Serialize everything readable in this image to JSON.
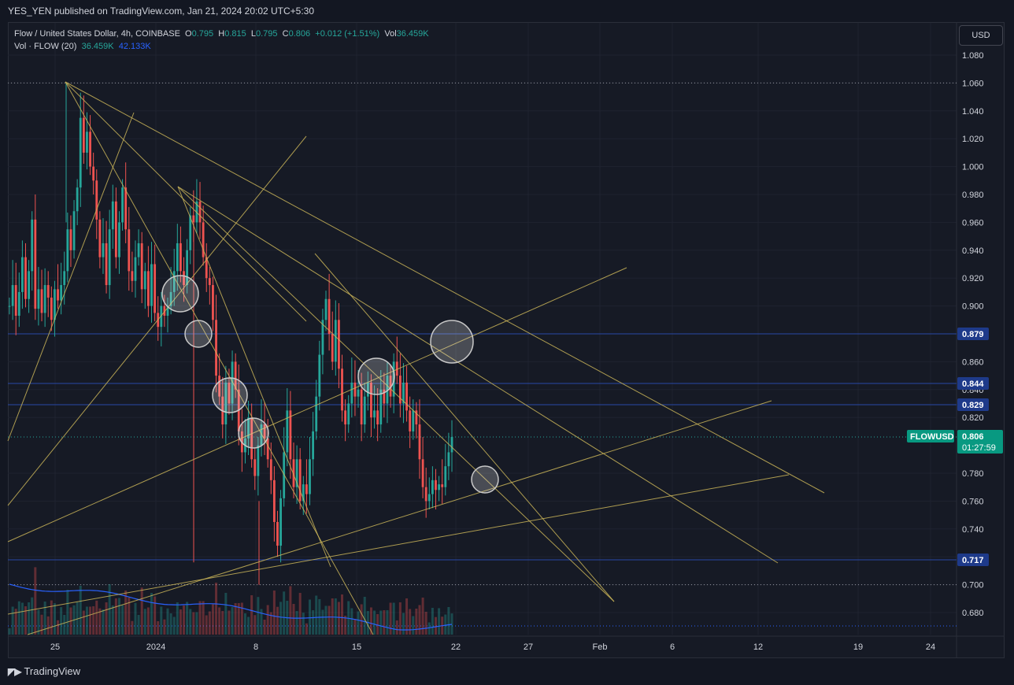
{
  "header": {
    "publisher_line": "YES_YEN published on TradingView.com, Jan 21, 2024 20:02 UTC+5:30"
  },
  "legend": {
    "symbol": "Flow / United States Dollar, 4h, COINBASE",
    "o_label": "O",
    "o_value": "0.795",
    "h_label": "H",
    "h_value": "0.815",
    "l_label": "L",
    "l_value": "0.795",
    "c_label": "C",
    "c_value": "0.806",
    "change": "+0.012 (+1.51%)",
    "vol_label": "Vol",
    "vol_value": "36.459K",
    "vol_indicator": "Vol · FLOW (20)",
    "vol_indicator_value1": "36.459K",
    "vol_indicator_value2": "42.133K"
  },
  "currency_button": "USD",
  "footer": {
    "brand": "TradingView"
  },
  "colors": {
    "up": "#26a69a",
    "down": "#ef5350",
    "drawing": "#c9b458",
    "hline": "#2848a8",
    "volma": "#2962ff"
  },
  "chart_data": {
    "type": "candlestick",
    "symbol": "FLOWUSD",
    "interval": "4h",
    "x_tick_labels": [
      "25",
      "2024",
      "8",
      "15",
      "22",
      "27",
      "Feb",
      "6",
      "12",
      "19",
      "24"
    ],
    "y_tick_labels": [
      "1.080",
      "1.060",
      "1.040",
      "1.020",
      "1.000",
      "0.980",
      "0.960",
      "0.940",
      "0.920",
      "0.900",
      "0.860",
      "0.840",
      "0.820",
      "0.780",
      "0.760",
      "0.740",
      "0.720",
      "0.700",
      "0.680"
    ],
    "ylim": [
      0.67,
      1.085
    ],
    "price_labels": [
      {
        "text": "0.879",
        "value": 0.879,
        "kind": "hline"
      },
      {
        "text": "0.844",
        "value": 0.844,
        "kind": "hline"
      },
      {
        "text": "0.829",
        "value": 0.829,
        "kind": "hline"
      },
      {
        "text": "0.717",
        "value": 0.717,
        "kind": "hline"
      }
    ],
    "last_price": {
      "symbol": "FLOWUSD",
      "value": "0.806",
      "countdown": "01:27:59"
    },
    "dotted_levels": [
      1.06,
      0.806,
      0.7,
      0.67
    ],
    "candle_closes": [
      0.9,
      0.915,
      0.893,
      0.91,
      0.935,
      0.905,
      0.925,
      0.962,
      0.898,
      0.912,
      0.895,
      0.915,
      0.906,
      0.89,
      0.912,
      0.904,
      0.915,
      0.925,
      0.955,
      0.94,
      0.968,
      0.985,
      1.035,
      1.01,
      1.025,
      1.0,
      0.99,
      0.962,
      0.935,
      0.945,
      0.915,
      0.955,
      0.975,
      0.935,
      0.96,
      0.985,
      0.955,
      0.925,
      0.918,
      0.935,
      0.945,
      0.912,
      0.925,
      0.9,
      0.93,
      0.895,
      0.885,
      0.9,
      0.893,
      0.9,
      0.91,
      0.925,
      0.945,
      0.925,
      0.915,
      0.94,
      0.965,
      0.96,
      0.975,
      0.96,
      0.935,
      0.92,
      0.915,
      0.89,
      0.85,
      0.835,
      0.815,
      0.845,
      0.83,
      0.86,
      0.84,
      0.81,
      0.795,
      0.805,
      0.82,
      0.79,
      0.778,
      0.8,
      0.815,
      0.805,
      0.79,
      0.775,
      0.745,
      0.728,
      0.762,
      0.795,
      0.825,
      0.79,
      0.77,
      0.79,
      0.76,
      0.772,
      0.765,
      0.79,
      0.81,
      0.835,
      0.865,
      0.89,
      0.905,
      0.88,
      0.86,
      0.89,
      0.855,
      0.825,
      0.815,
      0.83,
      0.845,
      0.835,
      0.84,
      0.815,
      0.835,
      0.845,
      0.82,
      0.825,
      0.815,
      0.84,
      0.83,
      0.85,
      0.835,
      0.86,
      0.85,
      0.83,
      0.845,
      0.825,
      0.81,
      0.825,
      0.815,
      0.79,
      0.77,
      0.76,
      0.765,
      0.775,
      0.768,
      0.772,
      0.77,
      0.785,
      0.795,
      0.806
    ],
    "volume_ma_visible": true
  }
}
